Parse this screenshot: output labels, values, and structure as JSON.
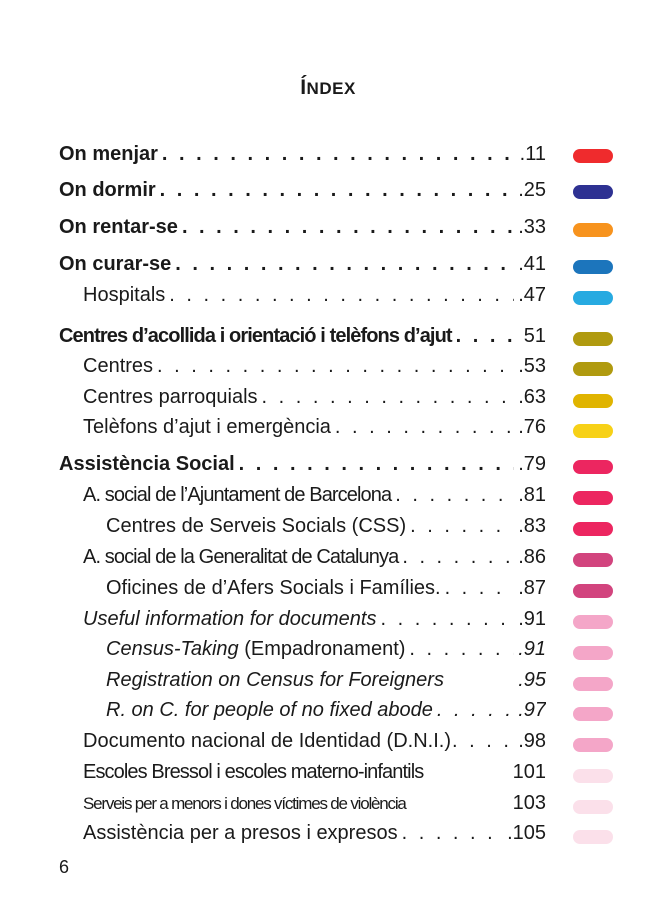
{
  "title": {
    "first": "Í",
    "rest": "NDEX"
  },
  "page_number": "6",
  "entries": [
    {
      "label": "On menjar",
      "page": ".11",
      "tab": "#ef2b2d"
    },
    {
      "label": "On dormir",
      "page": ".25",
      "tab": "#2e3192"
    },
    {
      "label": "On rentar-se",
      "page": ".33",
      "tab": "#f7931e"
    },
    {
      "label": "On curar-se",
      "page": ".41",
      "tab": "#1c75bc"
    },
    {
      "label": "Hospitals",
      "page": ".47",
      "tab": "#27aae1"
    },
    {
      "label": "Centres d’acollida i orientació i telèfons d’ajut",
      "page": "51",
      "tab": "#b09a0f"
    },
    {
      "label": "Centres",
      "page": ".53",
      "tab": "#b09a0f"
    },
    {
      "label": "Centres parroquials",
      "page": ".63",
      "tab": "#e0b400"
    },
    {
      "label": "Telèfons d’ajut i emergència",
      "page": ".76",
      "tab": "#f7d117"
    },
    {
      "label": "Assistència Social",
      "page": ".79",
      "tab": "#ec2660"
    },
    {
      "label": "A. social de l’Ajuntament de Barcelona",
      "page": ".81",
      "tab": "#ec2660"
    },
    {
      "label": "Centres de Serveis Socials (CSS)",
      "page": ".83",
      "tab": "#ec2660"
    },
    {
      "label": "A. social de la Generalitat de Catalunya",
      "page": ".86",
      "tab": "#d2447e"
    },
    {
      "label": "Oficines de d’Afers Socials i Famílies.",
      "page": ".87",
      "tab": "#d2447e"
    },
    {
      "label": "Useful information for documents",
      "page": ".91",
      "tab": "#f4a6c8"
    },
    {
      "label_italic": "Census-Taking",
      "label_normal": " (Empadronament)",
      "page": ".91",
      "tab": "#f4a6c8"
    },
    {
      "label": "Registration on Census for Foreigners",
      "page": ".95",
      "tab": "#f4a6c8"
    },
    {
      "label": "R. on C. for people of no fixed abode",
      "page": ".97",
      "tab": "#f4a6c8"
    },
    {
      "label": "Documento nacional de Identidad (D.N.I.)",
      "page": ".98",
      "tab": "#f4a6c8"
    },
    {
      "label": "Escoles Bressol i escoles materno-infantils",
      "page": "101",
      "tab": "#fbe0ea"
    },
    {
      "label": "Serveis per a menors i dones víctimes de violència",
      "page": "103",
      "tab": "#fbe0ea"
    },
    {
      "label": "Assistència per a presos i expresos",
      "page": ".105",
      "tab": "#fbe0ea"
    }
  ]
}
